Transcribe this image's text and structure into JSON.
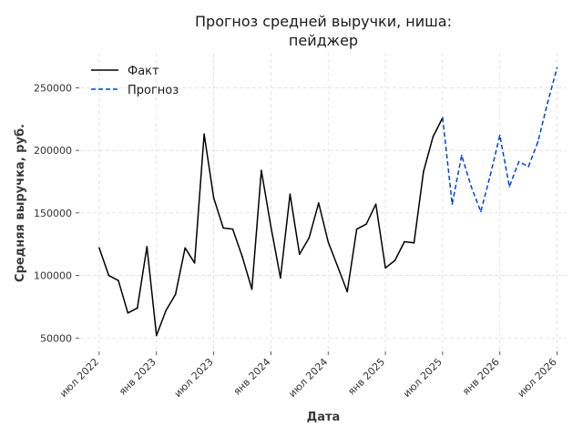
{
  "chart_data": {
    "type": "line",
    "title_lines": [
      "Прогноз средней выручки, ниша:",
      "пейджер"
    ],
    "xlabel": "Дата",
    "ylabel": "Средняя выручка, руб.",
    "ylim": [
      40000,
      278000
    ],
    "xlim": [
      "2022-05",
      "2026-08"
    ],
    "grid": true,
    "legend_position": "top-left",
    "yticks": [
      {
        "value": 50000,
        "label": "50000"
      },
      {
        "value": 100000,
        "label": "100000"
      },
      {
        "value": 150000,
        "label": "150000"
      },
      {
        "value": 200000,
        "label": "200000"
      },
      {
        "value": 250000,
        "label": "250000"
      }
    ],
    "xticks": [
      {
        "date": "2022-07",
        "label": "июл 2022"
      },
      {
        "date": "2023-01",
        "label": "янв 2023"
      },
      {
        "date": "2023-07",
        "label": "июл 2023"
      },
      {
        "date": "2024-01",
        "label": "янв 2024"
      },
      {
        "date": "2024-07",
        "label": "июл 2024"
      },
      {
        "date": "2025-01",
        "label": "янв 2025"
      },
      {
        "date": "2025-07",
        "label": "июл 2025"
      },
      {
        "date": "2026-01",
        "label": "янв 2026"
      },
      {
        "date": "2026-07",
        "label": "июл 2026"
      }
    ],
    "series": [
      {
        "name": "Факт",
        "color": "#000000",
        "style": "solid",
        "points": [
          {
            "x": "2022-07",
            "y": 122000
          },
          {
            "x": "2022-08",
            "y": 100000
          },
          {
            "x": "2022-09",
            "y": 96000
          },
          {
            "x": "2022-10",
            "y": 70000
          },
          {
            "x": "2022-11",
            "y": 74000
          },
          {
            "x": "2022-12",
            "y": 123000
          },
          {
            "x": "2023-01",
            "y": 52000
          },
          {
            "x": "2023-02",
            "y": 72000
          },
          {
            "x": "2023-03",
            "y": 85000
          },
          {
            "x": "2023-04",
            "y": 122000
          },
          {
            "x": "2023-05",
            "y": 110000
          },
          {
            "x": "2023-06",
            "y": 213000
          },
          {
            "x": "2023-07",
            "y": 162000
          },
          {
            "x": "2023-08",
            "y": 138000
          },
          {
            "x": "2023-09",
            "y": 137000
          },
          {
            "x": "2023-10",
            "y": 115000
          },
          {
            "x": "2023-11",
            "y": 89000
          },
          {
            "x": "2023-12",
            "y": 184000
          },
          {
            "x": "2024-01",
            "y": 139000
          },
          {
            "x": "2024-02",
            "y": 98000
          },
          {
            "x": "2024-03",
            "y": 165000
          },
          {
            "x": "2024-04",
            "y": 117000
          },
          {
            "x": "2024-05",
            "y": 130000
          },
          {
            "x": "2024-06",
            "y": 158000
          },
          {
            "x": "2024-07",
            "y": 127000
          },
          {
            "x": "2024-08",
            "y": 107000
          },
          {
            "x": "2024-09",
            "y": 87000
          },
          {
            "x": "2024-10",
            "y": 137000
          },
          {
            "x": "2024-11",
            "y": 141000
          },
          {
            "x": "2024-12",
            "y": 157000
          },
          {
            "x": "2025-01",
            "y": 106000
          },
          {
            "x": "2025-02",
            "y": 112000
          },
          {
            "x": "2025-03",
            "y": 127000
          },
          {
            "x": "2025-04",
            "y": 126000
          },
          {
            "x": "2025-05",
            "y": 183000
          },
          {
            "x": "2025-06",
            "y": 211000
          },
          {
            "x": "2025-07",
            "y": 226000
          }
        ]
      },
      {
        "name": "Прогноз",
        "color": "#0044cc",
        "style": "dashed",
        "points": [
          {
            "x": "2025-07",
            "y": 226000
          },
          {
            "x": "2025-08",
            "y": 157000
          },
          {
            "x": "2025-09",
            "y": 196000
          },
          {
            "x": "2025-10",
            "y": 171000
          },
          {
            "x": "2025-11",
            "y": 151000
          },
          {
            "x": "2025-12",
            "y": 180000
          },
          {
            "x": "2026-01",
            "y": 212000
          },
          {
            "x": "2026-02",
            "y": 171000
          },
          {
            "x": "2026-03",
            "y": 191000
          },
          {
            "x": "2026-04",
            "y": 187000
          },
          {
            "x": "2026-05",
            "y": 207000
          },
          {
            "x": "2026-06",
            "y": 238000
          },
          {
            "x": "2026-07",
            "y": 266000
          }
        ]
      }
    ]
  }
}
